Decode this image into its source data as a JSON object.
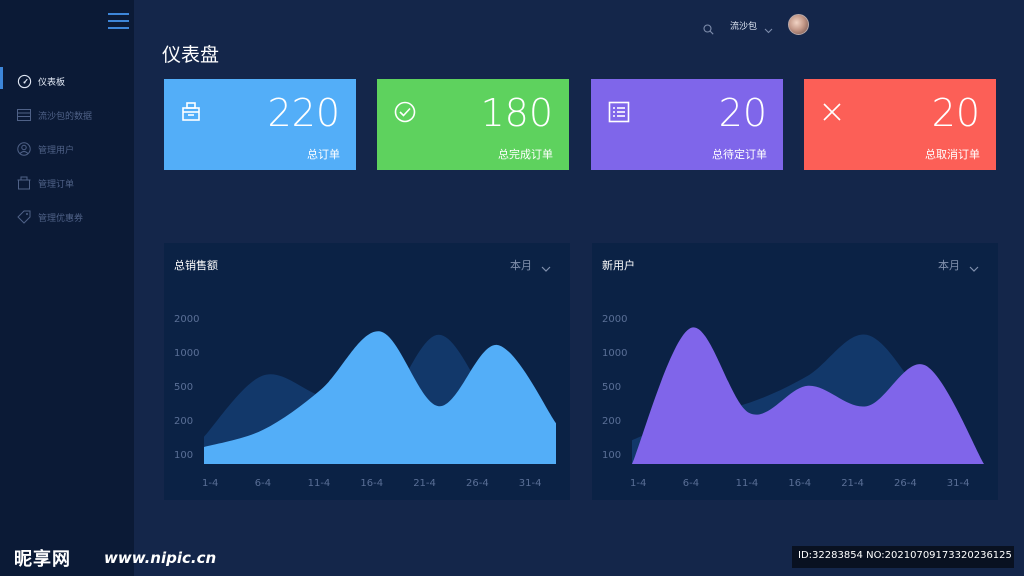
{
  "sidebar": {
    "items": [
      {
        "label": "仪表板",
        "icon": "dashboard-gauge-icon",
        "active": true
      },
      {
        "label": "流沙包的数据",
        "icon": "data-grid-icon",
        "active": false
      },
      {
        "label": "管理用户",
        "icon": "user-icon",
        "active": false
      },
      {
        "label": "管理订单",
        "icon": "order-box-icon",
        "active": false
      },
      {
        "label": "管理优惠券",
        "icon": "coupon-tag-icon",
        "active": false
      }
    ]
  },
  "header": {
    "user_name": "流沙包",
    "page_title": "仪表盘"
  },
  "stats": [
    {
      "value": "220",
      "label": "总订单",
      "color": "#53aef8",
      "icon": "cart-box-icon"
    },
    {
      "value": "180",
      "label": "总完成订单",
      "color": "#5ed25e",
      "icon": "check-circle-icon"
    },
    {
      "value": "20",
      "label": "总待定订单",
      "color": "#7f66ea",
      "icon": "list-icon"
    },
    {
      "value": "20",
      "label": "总取消订单",
      "color": "#fc5f57",
      "icon": "close-icon"
    }
  ],
  "panels": [
    {
      "title": "总销售额",
      "period": "本月"
    },
    {
      "title": "新用户",
      "period": "本月"
    }
  ],
  "chart_data": [
    {
      "type": "area",
      "title": "总销售额",
      "x": [
        "1-4",
        "6-4",
        "11-4",
        "16-4",
        "21-4",
        "26-4",
        "31-4"
      ],
      "y_ticks": [
        "100",
        "200",
        "500",
        "1000",
        "2000"
      ],
      "series": [
        {
          "color": "#53aef8",
          "values": [
            0.5,
            1.0,
            2.2,
            3.9,
            1.7,
            3.5,
            1.2
          ]
        },
        {
          "color": "#12386a",
          "values": [
            0.8,
            2.6,
            2.0,
            1.6,
            3.8,
            1.6,
            1.0
          ]
        }
      ]
    },
    {
      "type": "area",
      "title": "新用户",
      "x": [
        "1-4",
        "6-4",
        "11-4",
        "16-4",
        "21-4",
        "26-4",
        "31-4"
      ],
      "y_ticks": [
        "100",
        "200",
        "500",
        "1000",
        "2000"
      ],
      "series": [
        {
          "color": "#8065ea",
          "values": [
            0.0,
            4.0,
            1.5,
            2.3,
            1.7,
            2.9,
            0.0
          ]
        },
        {
          "color": "#12386a",
          "values": [
            0.7,
            1.4,
            1.8,
            2.6,
            3.8,
            1.9,
            0.0
          ]
        }
      ]
    }
  ],
  "watermark": {
    "site": "昵享网",
    "url": "www.nipic.cn",
    "id": "ID:32283854 NO:20210709173320236125"
  }
}
